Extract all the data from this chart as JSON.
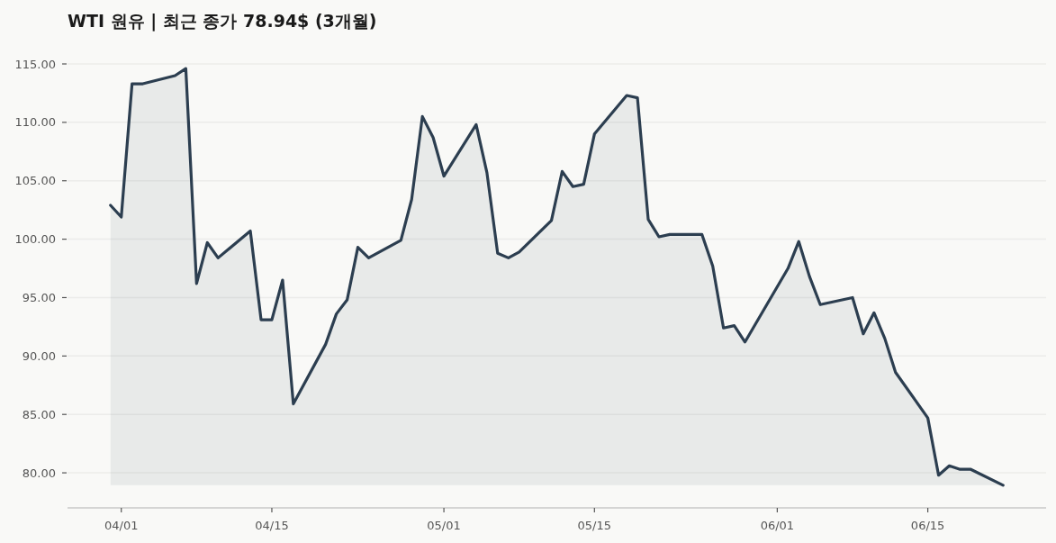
{
  "chart_data": {
    "type": "area",
    "title": "WTI 원유 | 최근 종가 78.94$ (3개월)",
    "x": [
      "--03-31",
      "--04-01",
      "--04-02",
      "--04-03",
      "--04-06",
      "--04-07",
      "--04-08",
      "--04-09",
      "--04-10",
      "--04-13",
      "--04-14",
      "--04-15",
      "--04-16",
      "--04-17",
      "--04-20",
      "--04-21",
      "--04-22",
      "--04-23",
      "--04-24",
      "--04-27",
      "--04-28",
      "--04-29",
      "--04-30",
      "--05-01",
      "--05-04",
      "--05-05",
      "--05-06",
      "--05-07",
      "--05-08",
      "--05-11",
      "--05-12",
      "--05-13",
      "--05-14",
      "--05-15",
      "--05-18",
      "--05-19",
      "--05-20",
      "--05-21",
      "--05-22",
      "--05-25",
      "--05-26",
      "--05-27",
      "--05-28",
      "--05-29",
      "--06-02",
      "--06-03",
      "--06-04",
      "--06-05",
      "--06-08",
      "--06-09",
      "--06-10",
      "--06-11",
      "--06-12",
      "--06-15",
      "--06-16",
      "--06-17",
      "--06-18",
      "--06-19",
      "--06-22"
    ],
    "values": [
      102.9,
      101.9,
      113.3,
      113.3,
      114.0,
      114.6,
      96.2,
      99.7,
      98.4,
      100.7,
      93.1,
      93.1,
      96.5,
      85.9,
      91.0,
      93.6,
      94.8,
      99.3,
      98.4,
      99.9,
      103.4,
      110.5,
      108.7,
      105.4,
      109.8,
      105.7,
      98.8,
      98.4,
      98.9,
      101.6,
      105.8,
      104.5,
      104.7,
      109.0,
      112.3,
      112.1,
      101.7,
      100.2,
      100.4,
      100.4,
      97.7,
      92.4,
      92.6,
      91.2,
      97.5,
      99.8,
      96.8,
      94.4,
      95.0,
      91.9,
      93.7,
      91.5,
      88.6,
      84.7,
      79.8,
      80.6,
      80.3,
      80.3,
      78.94
    ],
    "color": "#2c3e50",
    "xlim": [
      "--03-27",
      "--06-26"
    ],
    "ylim": [
      77,
      115
    ],
    "xticks": [
      {
        "value": "--04-01",
        "label": "04/01"
      },
      {
        "value": "--04-15",
        "label": "04/15"
      },
      {
        "value": "--05-01",
        "label": "05/01"
      },
      {
        "value": "--05-15",
        "label": "05/15"
      },
      {
        "value": "--06-01",
        "label": "06/01"
      },
      {
        "value": "--06-15",
        "label": "06/15"
      }
    ],
    "yticks": [
      {
        "value": 80,
        "label": "80.00"
      },
      {
        "value": 85,
        "label": "85.00"
      },
      {
        "value": 90,
        "label": "90.00"
      },
      {
        "value": 95,
        "label": "95.00"
      },
      {
        "value": 100,
        "label": "100.00"
      },
      {
        "value": 105,
        "label": "105.00"
      },
      {
        "value": 110,
        "label": "110.00"
      },
      {
        "value": 115,
        "label": "115.00"
      }
    ],
    "grid": "y"
  }
}
